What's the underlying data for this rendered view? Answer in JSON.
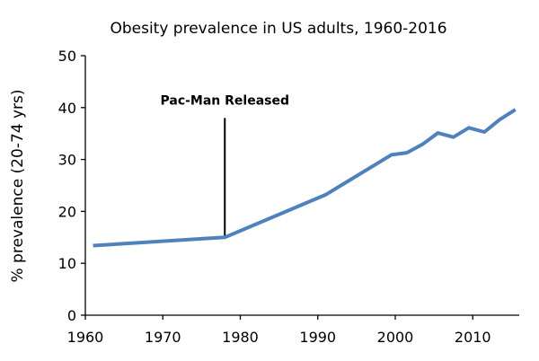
{
  "chart_data": {
    "type": "line",
    "title": "Obesity prevalence in US adults, 1960-2016",
    "xlabel": "",
    "ylabel": "% prevalence (20-74 yrs)",
    "xlim": [
      1960,
      2016
    ],
    "ylim": [
      0,
      50
    ],
    "x_ticks": [
      1960,
      1970,
      1980,
      1990,
      2000,
      2010
    ],
    "y_ticks": [
      0,
      10,
      20,
      30,
      40,
      50
    ],
    "grid": false,
    "legend": "none",
    "series": [
      {
        "name": "Obesity prevalence",
        "color": "#4f81bd",
        "x": [
          1961,
          1978,
          1991,
          1999.5,
          2001.5,
          2003.5,
          2005.5,
          2007.5,
          2009.5,
          2011.5,
          2013.5,
          2015.5
        ],
        "values": [
          13.4,
          15.0,
          23.2,
          30.9,
          31.3,
          32.9,
          35.1,
          34.3,
          36.1,
          35.3,
          37.7,
          39.6
        ]
      }
    ],
    "annotations": [
      {
        "text": "Pac-Man Released",
        "x": 1978,
        "y_top": 38,
        "y_bottom": 15.0
      }
    ]
  }
}
